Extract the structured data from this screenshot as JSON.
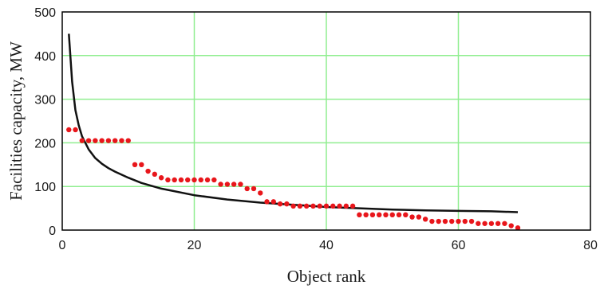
{
  "chart_data": {
    "type": "line",
    "xlabel": "Object rank",
    "ylabel": "Facilities capacity, MW",
    "xlim": [
      0,
      80
    ],
    "ylim": [
      0,
      500
    ],
    "xticks": [
      0,
      20,
      40,
      60,
      80
    ],
    "yticks": [
      0,
      100,
      200,
      300,
      400,
      500
    ],
    "grid": true,
    "colors": {
      "grid": "#90ee90",
      "line": "#111111",
      "points": "#e8161b",
      "frame": "#000000"
    },
    "series": [
      {
        "kind": "line",
        "x": [
          1,
          1.5,
          2,
          2.5,
          3,
          4,
          5,
          6,
          7,
          8,
          10,
          12,
          15,
          20,
          25,
          30,
          35,
          40,
          45,
          50,
          55,
          60,
          65,
          69
        ],
        "y": [
          450,
          340,
          275,
          240,
          215,
          185,
          165,
          152,
          142,
          134,
          120,
          108,
          95,
          80,
          70,
          63,
          58,
          53,
          50,
          47,
          45,
          44,
          43,
          41
        ]
      },
      {
        "kind": "scatter",
        "x": [
          1,
          2,
          3,
          4,
          5,
          6,
          7,
          8,
          9,
          10,
          11,
          12,
          13,
          14,
          15,
          16,
          17,
          18,
          19,
          20,
          21,
          22,
          23,
          24,
          25,
          26,
          27,
          28,
          29,
          30,
          31,
          32,
          33,
          34,
          35,
          36,
          37,
          38,
          39,
          40,
          41,
          42,
          43,
          44,
          45,
          46,
          47,
          48,
          49,
          50,
          51,
          52,
          53,
          54,
          55,
          56,
          57,
          58,
          59,
          60,
          61,
          62,
          63,
          64,
          65,
          66,
          67,
          68,
          69
        ],
        "y": [
          230,
          230,
          205,
          205,
          205,
          205,
          205,
          205,
          205,
          205,
          150,
          150,
          135,
          128,
          120,
          115,
          115,
          115,
          115,
          115,
          115,
          115,
          115,
          105,
          105,
          105,
          105,
          95,
          95,
          85,
          65,
          65,
          60,
          60,
          55,
          55,
          55,
          55,
          55,
          55,
          55,
          55,
          55,
          55,
          35,
          35,
          35,
          35,
          35,
          35,
          35,
          35,
          30,
          30,
          25,
          20,
          20,
          20,
          20,
          20,
          20,
          20,
          15,
          15,
          15,
          15,
          15,
          10,
          5
        ]
      }
    ]
  }
}
